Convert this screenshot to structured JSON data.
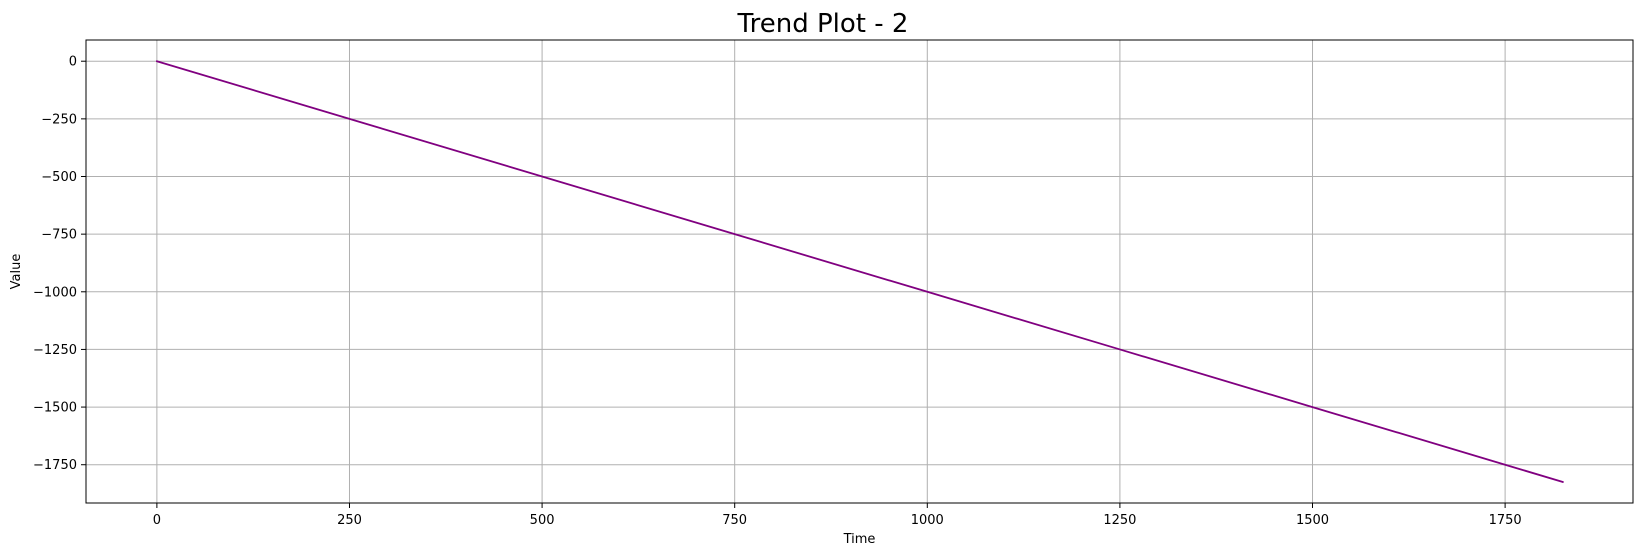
{
  "chart_data": {
    "type": "line",
    "title": "Trend Plot - 2",
    "xlabel": "Time",
    "ylabel": "Value",
    "xlim": [
      -92,
      1916
    ],
    "ylim": [
      -1916,
      92
    ],
    "grid": true,
    "line_color": "#800080",
    "x_ticks": [
      0,
      250,
      500,
      750,
      1000,
      1250,
      1500,
      1750
    ],
    "x_tick_labels": [
      "0",
      "250",
      "500",
      "750",
      "1000",
      "1250",
      "1500",
      "1750"
    ],
    "y_ticks": [
      0,
      -250,
      -500,
      -750,
      -1000,
      -1250,
      -1500,
      -1750
    ],
    "y_tick_labels": [
      "0",
      "−250",
      "−500",
      "−750",
      "−1000",
      "−1250",
      "−1500",
      "−1750"
    ],
    "series": [
      {
        "x": [
          0,
          250,
          500,
          750,
          1000,
          1250,
          1500,
          1750,
          1825
        ],
        "y": [
          0,
          -250,
          -500,
          -750,
          -1000,
          -1250,
          -1500,
          -1750,
          -1825
        ]
      }
    ]
  }
}
